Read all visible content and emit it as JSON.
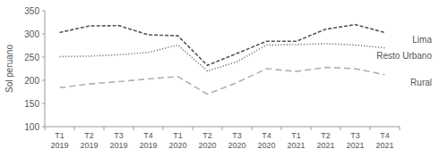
{
  "chart_data": {
    "type": "line",
    "y_label": "Sol peruano",
    "categories": [
      "T1 2019",
      "T2 2019",
      "T3 2019",
      "T4 2019",
      "T1 2020",
      "T2 2020",
      "T3 2020",
      "T4 2020",
      "T1 2021",
      "T2 2021",
      "T3 2021",
      "T4 2021"
    ],
    "series": [
      {
        "name": "Lima",
        "color": "#555555",
        "line_style": "dashed",
        "values": [
          303,
          317,
          318,
          298,
          296,
          232,
          258,
          284,
          284,
          310,
          320,
          303
        ]
      },
      {
        "name": "Resto Urbano",
        "color": "#7a7a7a",
        "line_style": "dotted",
        "values": [
          251,
          252,
          255,
          260,
          276,
          220,
          240,
          276,
          277,
          279,
          276,
          270
        ]
      },
      {
        "name": "Rural",
        "color": "#b0b0b0",
        "line_style": "long-dashed",
        "values": [
          184,
          192,
          197,
          203,
          208,
          170,
          195,
          225,
          219,
          228,
          225,
          212
        ]
      }
    ],
    "ylim": [
      100,
      350
    ],
    "yticks": [
      100,
      150,
      200,
      250,
      300,
      350
    ],
    "grid": false,
    "legend": "right"
  }
}
